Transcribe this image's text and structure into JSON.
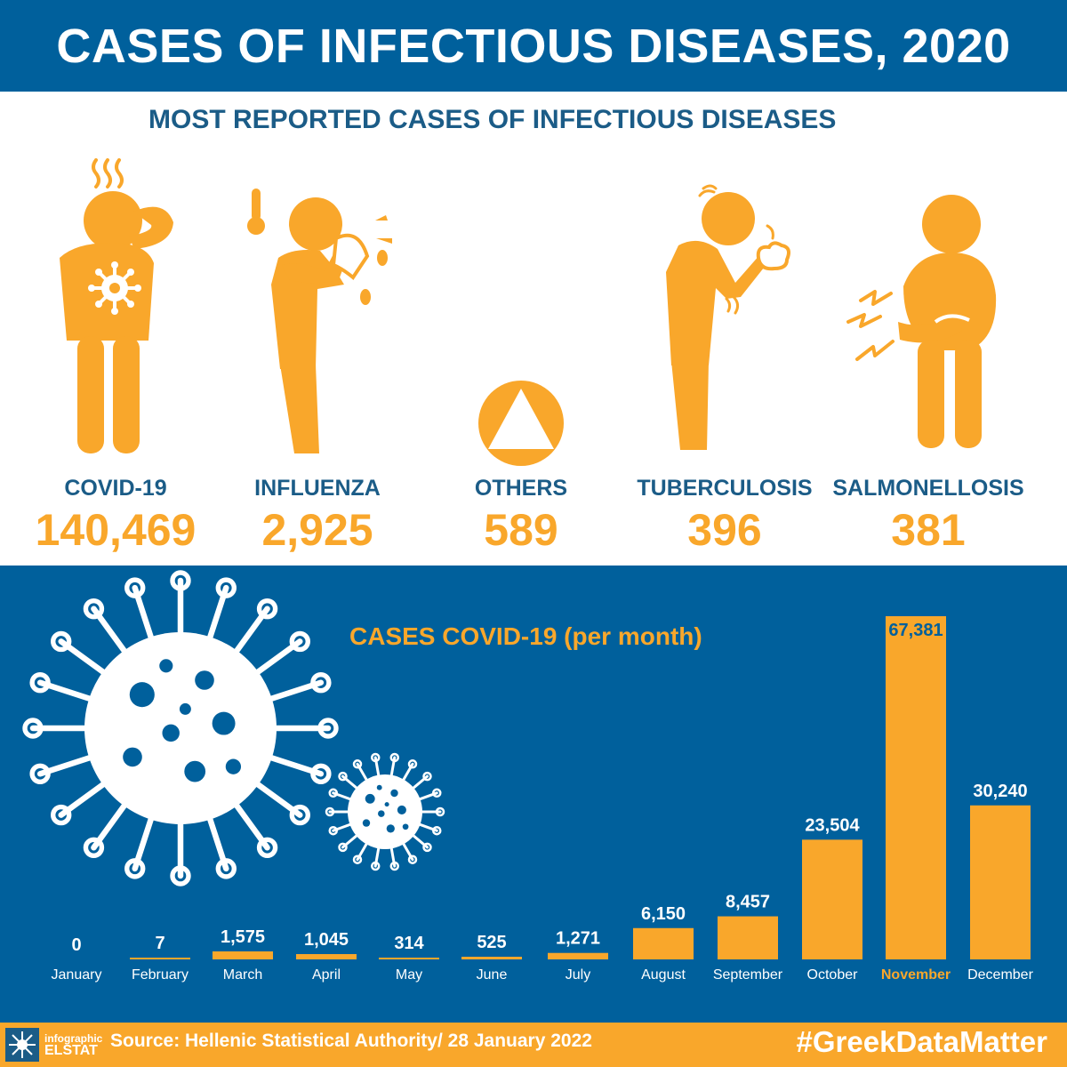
{
  "header": {
    "title": "CASES OF INFECTIOUS DISEASES, 2020"
  },
  "section_title": "MOST REPORTED CASES OF INFECTIOUS DISEASES",
  "diseases": [
    {
      "name": "COVID-19",
      "count": "140,469",
      "icon": "person-headache-icon"
    },
    {
      "name": "INFLUENZA",
      "count": "2,925",
      "icon": "person-sneezing-icon"
    },
    {
      "name": "OTHERS",
      "count": "589",
      "icon": "triangle-circle-icon"
    },
    {
      "name": "TUBERCULOSIS",
      "count": "396",
      "icon": "person-coughing-icon"
    },
    {
      "name": "SALMONELLOSIS",
      "count": "381",
      "icon": "person-stomachache-icon"
    }
  ],
  "colors": {
    "blue": "#00609c",
    "orange": "#f9a72b",
    "dark_blue_text": "#1b5c87",
    "white": "#ffffff"
  },
  "chart_data": {
    "type": "bar",
    "title": "CASES COVID-19 (per month)",
    "categories": [
      "January",
      "February",
      "March",
      "April",
      "May",
      "June",
      "July",
      "August",
      "September",
      "October",
      "November",
      "December"
    ],
    "values": [
      0,
      7,
      1575,
      1045,
      314,
      525,
      1271,
      6150,
      8457,
      23504,
      67381,
      30240
    ],
    "value_labels": [
      "0",
      "7",
      "1,575",
      "1,045",
      "314",
      "525",
      "1,271",
      "6,150",
      "8,457",
      "23,504",
      "67,381",
      "30,240"
    ],
    "highlighted_category": "November",
    "ylim": [
      0,
      67381
    ],
    "grid": false,
    "legend": "none"
  },
  "footer": {
    "logo_line1": "infographic",
    "logo_line2": "ELSTAT",
    "source": "Source: Hellenic Statistical Authority/ 28 January 2022",
    "hashtag": "#GreekDataMatter"
  }
}
